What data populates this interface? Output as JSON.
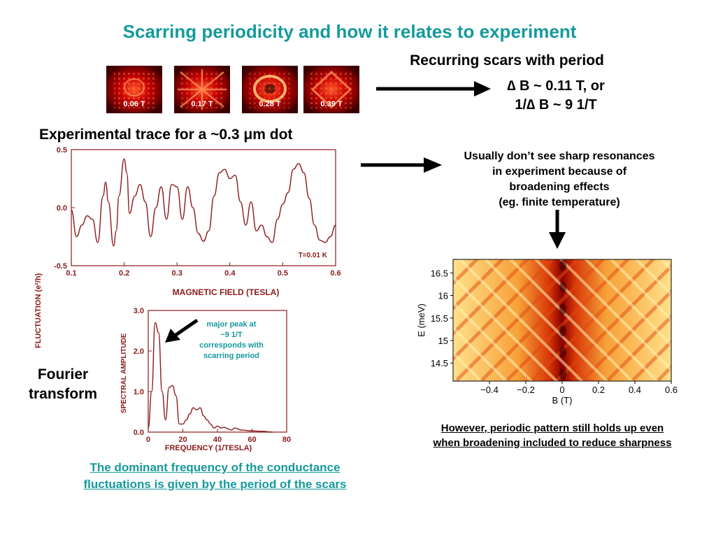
{
  "title": "Scarring periodicity and how it relates to experiment",
  "scars": {
    "heading": "Recurring scars with period",
    "labels": [
      "0.06 T",
      "0.17 T",
      "0.28 T",
      "0.39 T"
    ],
    "period_line1": "∆ B ~ 0.11 T, or",
    "period_line2": "1/∆ B ~ 9 1/T"
  },
  "experimental": {
    "heading": "Experimental trace for a ~0.3 μm dot",
    "note_lines": [
      "Usually don’t see sharp resonances",
      "in experiment because of",
      "broadening effects",
      "(eg. finite temperature)"
    ]
  },
  "fourier_label": [
    "Fourier",
    "transform"
  ],
  "peak_annotation": [
    "major peak at",
    "~9 1/T",
    "corresponds with",
    "scarring period"
  ],
  "bottom_left": [
    "The dominant frequency of the conductance",
    "fluctuations is given by the period of the scars"
  ],
  "bottom_right": [
    "However, periodic pattern still holds up even",
    "when broadening included to reduce sharpness"
  ],
  "colors": {
    "title": "#159a9c",
    "trace": "#8b1a1a",
    "arrow": "#000000"
  },
  "chart_data": [
    {
      "type": "line",
      "title": "",
      "xlabel": "MAGNETIC FIELD (TESLA)",
      "ylabel": "FLUCTUATION (e²/h)",
      "xlim": [
        0.1,
        0.6
      ],
      "ylim": [
        -0.5,
        0.5
      ],
      "xticks": [
        "0.1",
        "0.2",
        "0.3",
        "0.4",
        "0.5",
        "0.6"
      ],
      "yticks": [
        "0.5",
        "0.0",
        "-0.5"
      ],
      "annotation": "T=0.01 K",
      "x": [
        0.1,
        0.11,
        0.12,
        0.13,
        0.14,
        0.15,
        0.16,
        0.165,
        0.17,
        0.18,
        0.185,
        0.19,
        0.2,
        0.205,
        0.21,
        0.22,
        0.23,
        0.24,
        0.25,
        0.26,
        0.27,
        0.28,
        0.29,
        0.3,
        0.31,
        0.32,
        0.33,
        0.34,
        0.35,
        0.36,
        0.37,
        0.38,
        0.39,
        0.4,
        0.41,
        0.42,
        0.43,
        0.44,
        0.45,
        0.46,
        0.47,
        0.48,
        0.49,
        0.5,
        0.51,
        0.52,
        0.53,
        0.54,
        0.55,
        0.56,
        0.57,
        0.58,
        0.59,
        0.6
      ],
      "y": [
        -0.02,
        -0.25,
        -0.15,
        -0.07,
        -0.1,
        -0.3,
        0.1,
        0.22,
        0.05,
        -0.33,
        -0.2,
        0.1,
        0.42,
        0.3,
        -0.05,
        0.1,
        0.2,
        0.05,
        -0.25,
        0.0,
        0.18,
        -0.1,
        0.2,
        0.18,
        -0.1,
        0.18,
        0.0,
        -0.22,
        -0.29,
        -0.2,
        0.1,
        0.3,
        0.33,
        0.25,
        0.28,
        0.05,
        -0.15,
        0.05,
        -0.2,
        -0.15,
        -0.25,
        -0.3,
        -0.1,
        0.03,
        0.13,
        0.33,
        0.38,
        0.3,
        0.08,
        -0.15,
        -0.28,
        -0.3,
        -0.25,
        -0.15
      ]
    },
    {
      "type": "line",
      "title": "",
      "xlabel": "FREQUENCY (1/TESLA)",
      "ylabel": "SPECTRAL AMPLITUDE",
      "xlim": [
        0,
        80
      ],
      "ylim": [
        0.0,
        3.0
      ],
      "xticks": [
        "0",
        "20",
        "40",
        "60",
        "80"
      ],
      "yticks": [
        "3.0",
        "2.0",
        "1.0",
        "0.0"
      ],
      "x": [
        0,
        2,
        4,
        6,
        8,
        10,
        12,
        14,
        16,
        18,
        20,
        22,
        24,
        26,
        28,
        30,
        32,
        34,
        36,
        38,
        40,
        42,
        44,
        46,
        48,
        50,
        54,
        60,
        66,
        72
      ],
      "y": [
        0.1,
        1.0,
        2.7,
        2.45,
        1.0,
        0.3,
        1.1,
        1.15,
        0.9,
        0.2,
        0.2,
        0.3,
        0.45,
        0.6,
        0.55,
        0.6,
        0.4,
        0.3,
        0.2,
        0.1,
        0.15,
        0.1,
        0.12,
        0.08,
        0.05,
        0.1,
        0.05,
        0.03,
        0.02,
        0.0
      ]
    },
    {
      "type": "heatmap",
      "title": "",
      "xlabel": "B (T)",
      "ylabel": "E (meV)",
      "xlim": [
        -0.6,
        0.6
      ],
      "ylim": [
        14.1,
        16.8
      ],
      "xticks": [
        "−0.4",
        "−0.2",
        "0",
        "0.2",
        "0.4",
        "0.6"
      ],
      "yticks": [
        "16.5",
        "16",
        "15.5",
        "15",
        "14.5"
      ]
    }
  ]
}
